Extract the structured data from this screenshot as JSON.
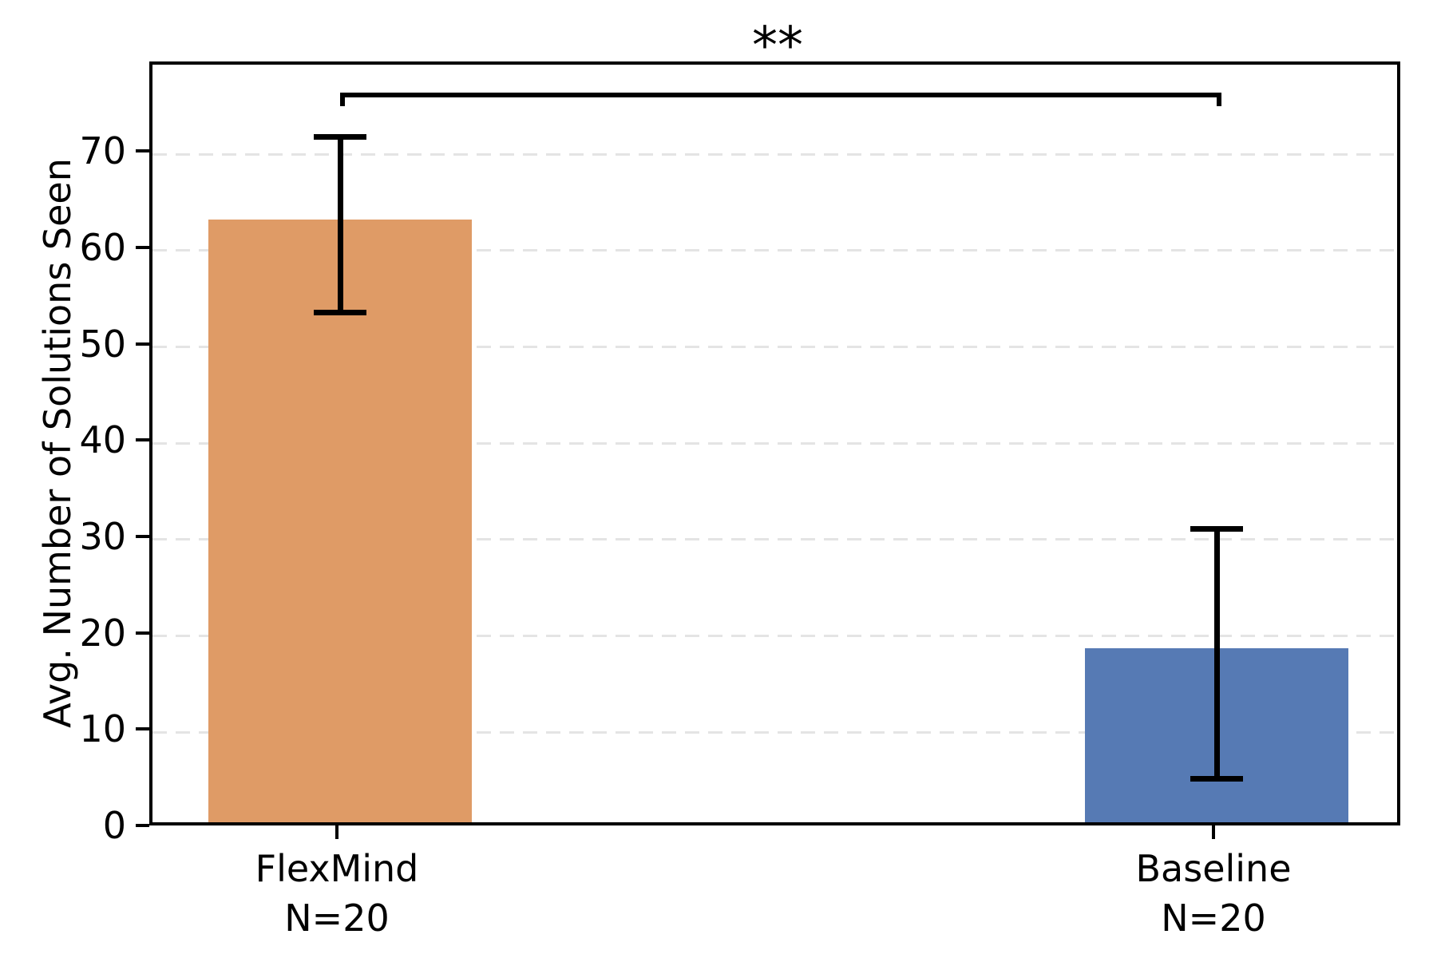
{
  "figure": {
    "background": "#ffffff"
  },
  "chart_data": {
    "type": "bar",
    "title": "",
    "xlabel": "",
    "ylabel": "Avg. Number of Solutions Seen",
    "ylim": [
      0,
      79.3
    ],
    "yticks": [
      0,
      10,
      20,
      30,
      40,
      50,
      60,
      70
    ],
    "grid": "horizontal-dashed",
    "legend": "none",
    "categories": [
      "FlexMind",
      "Baseline"
    ],
    "category_sublabels": [
      "N=20",
      "N=20"
    ],
    "series": [
      {
        "name": "Avg. Number of Solutions Seen",
        "values": [
          62.6,
          18.1
        ],
        "ci_low": [
          53.6,
          5.2
        ],
        "ci_high": [
          71.8,
          31.1
        ],
        "bar_colors": [
          "#df9b66",
          "#567ab4"
        ],
        "error_color": "#000000"
      }
    ],
    "annotations": [
      {
        "type": "significance-bracket",
        "between": [
          "FlexMind",
          "Baseline"
        ],
        "label": "**"
      }
    ]
  }
}
